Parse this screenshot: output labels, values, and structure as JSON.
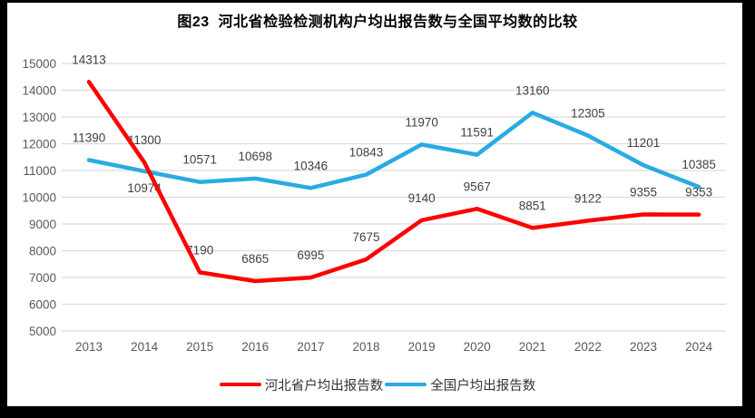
{
  "window": {
    "frame_color": "#000000",
    "panel_color": "#ffffff"
  },
  "chart_data": {
    "type": "line",
    "title": "图23  河北省检验检测机构户均出报告数与全国平均数的比较",
    "categories": [
      "2013",
      "2014",
      "2015",
      "2016",
      "2017",
      "2018",
      "2019",
      "2020",
      "2021",
      "2022",
      "2023",
      "2024"
    ],
    "series": [
      {
        "name": "河北省户均出报告数",
        "color": "#ff0000",
        "values": [
          14313,
          11300,
          7190,
          6865,
          6995,
          7675,
          9140,
          9567,
          8851,
          9122,
          9355,
          9353
        ],
        "label_below": []
      },
      {
        "name": "全国户均出报告数",
        "color": "#29abe2",
        "values": [
          11390,
          10974,
          10571,
          10698,
          10346,
          10843,
          11970,
          11591,
          13160,
          12305,
          11201,
          10385
        ],
        "label_below": [
          1
        ]
      }
    ],
    "xlabel": "",
    "ylabel": "",
    "ylim": [
      5000,
      15000
    ],
    "yticks": [
      5000,
      6000,
      7000,
      8000,
      9000,
      10000,
      11000,
      12000,
      13000,
      14000,
      15000
    ],
    "grid": true,
    "legend_position": "bottom",
    "data_labels": true,
    "grid_color": "#dcdcdc",
    "axis_text_color": "#595959",
    "data_label_color": "#404040"
  }
}
